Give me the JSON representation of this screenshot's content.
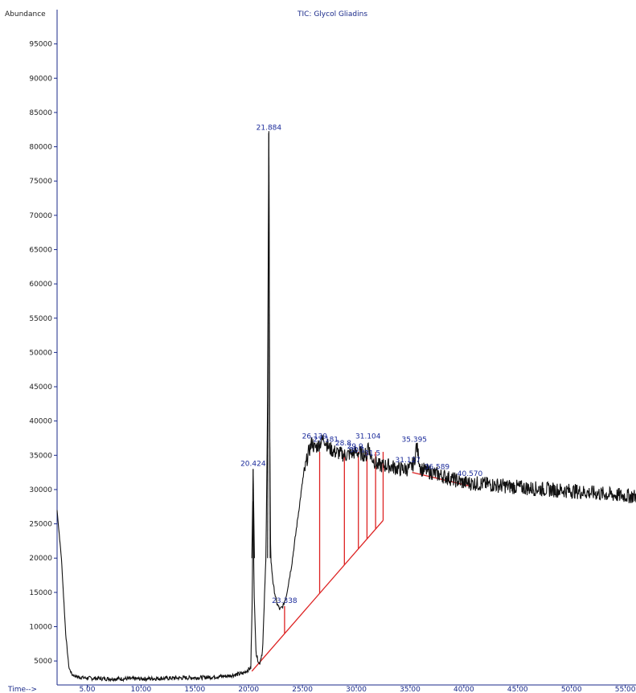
{
  "chart_data": {
    "type": "line",
    "title": "TIC: Glycol Gliadins",
    "ylabel": "Abundance",
    "xlabel": "Time-->",
    "xlim": [
      2.2,
      56.0
    ],
    "ylim": [
      1500,
      100000
    ],
    "x_ticks": [
      5,
      10,
      15,
      20,
      25,
      30,
      35,
      40,
      45,
      50,
      55
    ],
    "x_tick_labels": [
      "5.00",
      "10.00",
      "15.00",
      "20.00",
      "25.00",
      "30.00",
      "35.00",
      "40.00",
      "45.00",
      "50.00",
      "55.00"
    ],
    "y_ticks": [
      5000,
      10000,
      15000,
      20000,
      25000,
      30000,
      35000,
      40000,
      45000,
      50000,
      55000,
      60000,
      65000,
      70000,
      75000,
      80000,
      85000,
      90000,
      95000
    ],
    "y_tick_labels": [
      "5000",
      "10000",
      "15000",
      "20000",
      "25000",
      "30000",
      "35000",
      "40000",
      "45000",
      "50000",
      "55000",
      "60000",
      "65000",
      "70000",
      "75000",
      "80000",
      "85000",
      "90000",
      "95000"
    ],
    "series": [
      {
        "x": [
          2.2,
          2.6,
          3.0,
          3.3,
          3.6,
          4.0,
          5.0,
          7.0,
          10.0,
          13.0,
          16.0,
          18.0,
          19.5,
          20.2,
          20.35,
          20.42,
          20.5,
          20.7,
          21.0,
          21.3,
          21.6,
          21.75,
          21.88,
          21.95,
          22.05,
          22.3,
          22.6,
          22.9,
          23.2,
          23.5,
          24.0,
          24.5,
          25.0,
          25.5,
          25.9,
          26.1,
          26.5,
          27.0,
          27.5,
          28.0,
          29.0,
          30.0,
          31.0,
          31.1,
          31.3,
          32.0,
          33.0,
          34.0,
          35.0,
          35.4,
          35.6,
          36.0,
          37.0,
          38.0,
          39.0,
          40.0,
          42.0,
          44.0,
          46.0,
          48.0,
          50.0,
          52.0,
          54.0,
          56.0
        ],
        "y": [
          27000,
          20000,
          9000,
          4000,
          3000,
          2700,
          2500,
          2400,
          2400,
          2500,
          2600,
          2800,
          3200,
          4000,
          15000,
          33000,
          15000,
          6000,
          4500,
          6500,
          20000,
          40000,
          82000,
          40000,
          20000,
          16000,
          13500,
          12500,
          13000,
          14500,
          19000,
          25000,
          31000,
          35000,
          37000,
          36000,
          36500,
          37500,
          36000,
          35500,
          35000,
          35500,
          35000,
          37000,
          35000,
          33500,
          33500,
          33000,
          33000,
          34000,
          36500,
          33000,
          32500,
          32000,
          31500,
          31000,
          30800,
          30500,
          30200,
          30000,
          29800,
          29500,
          29200,
          29000
        ]
      }
    ],
    "baseline": [
      {
        "x": 20.3,
        "y": 3500
      },
      {
        "x": 32.5,
        "y": 25500
      }
    ],
    "peaks": [
      {
        "label": "20.424",
        "x": 20.42,
        "y": 33000
      },
      {
        "label": "21.884",
        "x": 21.88,
        "y": 82000
      },
      {
        "label": "23.338",
        "x": 23.34,
        "y": 13000
      },
      {
        "label": "26.139",
        "x": 26.14,
        "y": 37000
      },
      {
        "label": "27.181",
        "x": 27.18,
        "y": 36500
      },
      {
        "label": "28.8",
        "x": 28.8,
        "y": 36000
      },
      {
        "label": "29.9",
        "x": 29.9,
        "y": 35500
      },
      {
        "label": "30.1",
        "x": 30.1,
        "y": 35000
      },
      {
        "label": "31.104",
        "x": 31.1,
        "y": 37000
      },
      {
        "label": "31.5",
        "x": 31.5,
        "y": 34500
      },
      {
        "label": "31.127",
        "x": 34.8,
        "y": 33500
      },
      {
        "label": "35.395",
        "x": 35.4,
        "y": 36500
      },
      {
        "label": "36.589",
        "x": 37.5,
        "y": 32500
      },
      {
        "label": "40.570",
        "x": 40.57,
        "y": 31500
      }
    ],
    "colors": {
      "trace": "#111111",
      "integration": "#dd2222",
      "label": "#2233aa",
      "axis": "#1a2a8a"
    },
    "grid": false
  }
}
